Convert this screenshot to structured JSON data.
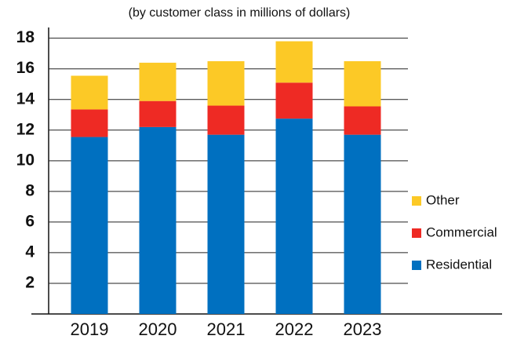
{
  "chart_data": {
    "type": "stacked_bar",
    "subtitle": "(by customer class in millions of dollars)",
    "categories": [
      "2019",
      "2020",
      "2021",
      "2022",
      "2023"
    ],
    "series": [
      {
        "name": "Residential",
        "color": "#0070c0",
        "values": [
          11.55,
          12.2,
          11.7,
          12.75,
          11.7
        ]
      },
      {
        "name": "Commercial",
        "color": "#ee2a24",
        "values": [
          1.8,
          1.7,
          1.9,
          2.35,
          1.85
        ]
      },
      {
        "name": "Other",
        "color": "#fcc926",
        "values": [
          2.2,
          2.5,
          2.9,
          2.7,
          2.95
        ]
      }
    ],
    "ylim": [
      0,
      18.7
    ],
    "yticks": [
      2,
      4,
      6,
      8,
      10,
      12,
      14,
      16,
      18
    ],
    "grid": true,
    "legend": "right"
  }
}
